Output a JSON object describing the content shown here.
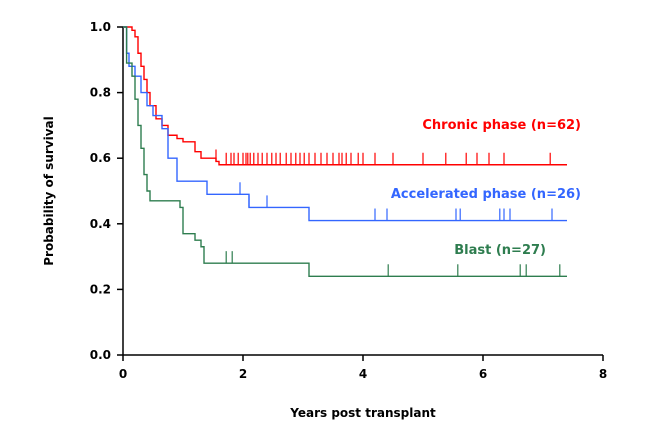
{
  "chart_data": {
    "type": "line",
    "subtype": "kaplan-meier",
    "xlabel": "Years post transplant",
    "ylabel": "Probability of survival",
    "xlim": [
      0,
      8
    ],
    "ylim": [
      0,
      1
    ],
    "xticks": [
      0,
      2,
      4,
      6,
      8
    ],
    "xtick_labels": [
      "0",
      "2",
      "4",
      "6",
      "8"
    ],
    "yticks": [
      0,
      0.2,
      0.4,
      0.6,
      0.8,
      1.0
    ],
    "ytick_labels": [
      "0.0",
      "0.2",
      "0.4",
      "0.6",
      "0.8",
      "1.0"
    ],
    "grid": false,
    "series": [
      {
        "name": "Chronic phase (n=62)",
        "color": "#ff0000",
        "steps": [
          [
            0,
            1.0
          ],
          [
            0.15,
            0.99
          ],
          [
            0.2,
            0.97
          ],
          [
            0.25,
            0.92
          ],
          [
            0.3,
            0.88
          ],
          [
            0.35,
            0.84
          ],
          [
            0.4,
            0.8
          ],
          [
            0.45,
            0.76
          ],
          [
            0.55,
            0.72
          ],
          [
            0.65,
            0.7
          ],
          [
            0.75,
            0.67
          ],
          [
            0.9,
            0.66
          ],
          [
            1.0,
            0.65
          ],
          [
            1.2,
            0.62
          ],
          [
            1.3,
            0.6
          ],
          [
            1.55,
            0.59
          ],
          [
            1.6,
            0.58
          ],
          [
            7.4,
            0.58
          ]
        ],
        "censored": [
          1.55,
          1.72,
          1.8,
          1.85,
          1.92,
          2.0,
          2.05,
          2.08,
          2.12,
          2.18,
          2.25,
          2.32,
          2.4,
          2.48,
          2.55,
          2.62,
          2.72,
          2.8,
          2.88,
          2.95,
          3.02,
          3.1,
          3.2,
          3.3,
          3.4,
          3.5,
          3.6,
          3.65,
          3.72,
          3.8,
          3.92,
          4.0,
          4.2,
          4.5,
          5.0,
          5.38,
          5.72,
          5.9,
          6.1,
          6.35,
          7.12
        ]
      },
      {
        "name": "Accelerated phase (n=26)",
        "color": "#3366ff",
        "steps": [
          [
            0,
            1.0
          ],
          [
            0.06,
            0.92
          ],
          [
            0.1,
            0.88
          ],
          [
            0.2,
            0.85
          ],
          [
            0.3,
            0.8
          ],
          [
            0.4,
            0.76
          ],
          [
            0.5,
            0.73
          ],
          [
            0.65,
            0.69
          ],
          [
            0.75,
            0.6
          ],
          [
            0.9,
            0.53
          ],
          [
            1.4,
            0.49
          ],
          [
            2.1,
            0.45
          ],
          [
            3.1,
            0.41
          ],
          [
            7.4,
            0.41
          ]
        ],
        "censored": [
          1.95,
          2.1,
          2.4,
          4.2,
          4.4,
          5.55,
          5.62,
          6.28,
          6.35,
          6.45,
          7.15
        ]
      },
      {
        "name": "Blast (n=27)",
        "color": "#2e7d4f",
        "steps": [
          [
            0,
            1.0
          ],
          [
            0.06,
            0.89
          ],
          [
            0.15,
            0.85
          ],
          [
            0.2,
            0.78
          ],
          [
            0.25,
            0.7
          ],
          [
            0.3,
            0.63
          ],
          [
            0.35,
            0.55
          ],
          [
            0.4,
            0.5
          ],
          [
            0.45,
            0.47
          ],
          [
            0.95,
            0.45
          ],
          [
            1.0,
            0.37
          ],
          [
            1.2,
            0.35
          ],
          [
            1.3,
            0.33
          ],
          [
            1.35,
            0.28
          ],
          [
            3.1,
            0.24
          ],
          [
            7.4,
            0.24
          ]
        ],
        "censored": [
          1.72,
          1.82,
          4.42,
          5.58,
          6.62,
          6.72,
          7.28
        ]
      }
    ]
  }
}
